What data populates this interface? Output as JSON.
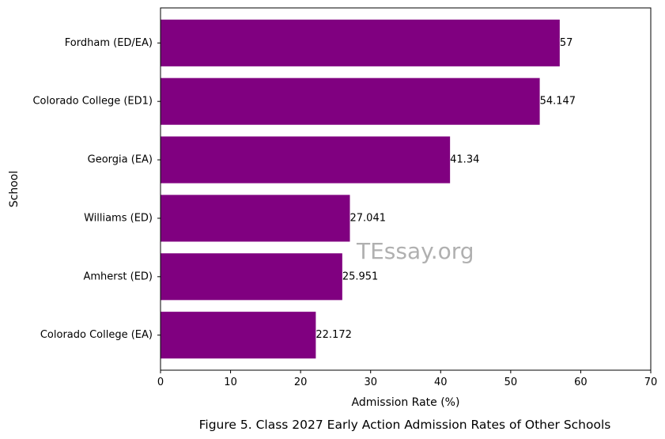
{
  "chart_data": {
    "type": "bar",
    "orientation": "horizontal",
    "categories": [
      "Fordham (ED/EA)",
      "Colorado College (ED1)",
      "Georgia (EA)",
      "Williams (ED)",
      "Amherst (ED)",
      "Colorado College (EA)"
    ],
    "values": [
      57,
      54.147,
      41.34,
      27.041,
      25.951,
      22.172
    ],
    "value_labels": [
      "57",
      "54.147",
      "41.34",
      "27.041",
      "25.951",
      "22.172"
    ],
    "xlabel": "Admission Rate (%)",
    "ylabel": "School",
    "xlim": [
      0,
      70
    ],
    "xticks": [
      0,
      10,
      20,
      30,
      40,
      50,
      60,
      70
    ],
    "grid": false,
    "bar_color": "#800080",
    "caption": "Figure 5. Class 2027 Early Action Admission Rates of Other Schools",
    "watermark": "TEssay.org"
  }
}
